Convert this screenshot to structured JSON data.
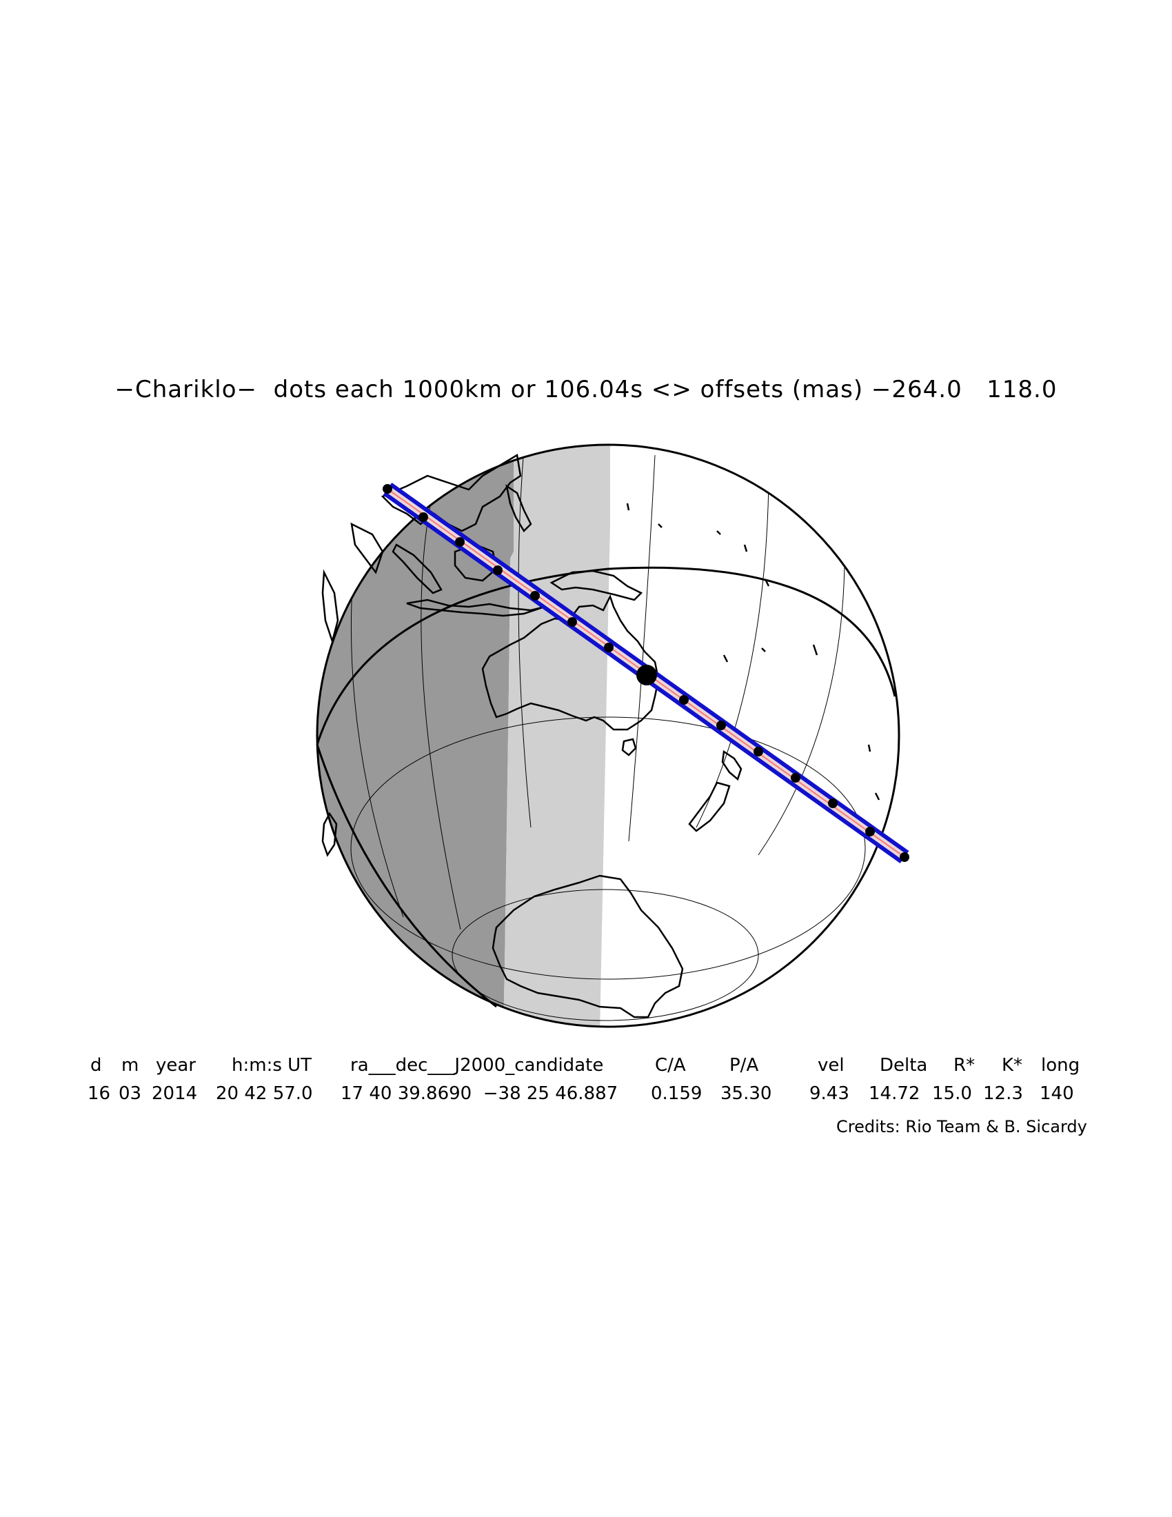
{
  "title": "−Chariklo−  dots each 1000km or 106.04s <> offsets (mas) −264.0   118.0",
  "colors": {
    "night": "#999999",
    "twilight": "#d0d0d0",
    "day": "#ffffff",
    "track": "#1111cc",
    "track_center": "#ff7777",
    "outline": "#000000"
  },
  "table": {
    "headers": [
      "d",
      "m",
      "year",
      "h:m:s UT",
      "ra___dec___J2000_candidate",
      "C/A",
      "P/A",
      "vel",
      "Delta",
      "R*",
      "K*",
      "long"
    ],
    "values": [
      "16",
      "03",
      "2014",
      "20 42 57.0",
      "17 40 39.8690  −38 25 46.887",
      "0.159",
      "35.30",
      "9.43",
      "14.72",
      "15.0",
      "12.3",
      "140"
    ]
  },
  "credits": "Credits: Rio Team & B. Sicardy"
}
